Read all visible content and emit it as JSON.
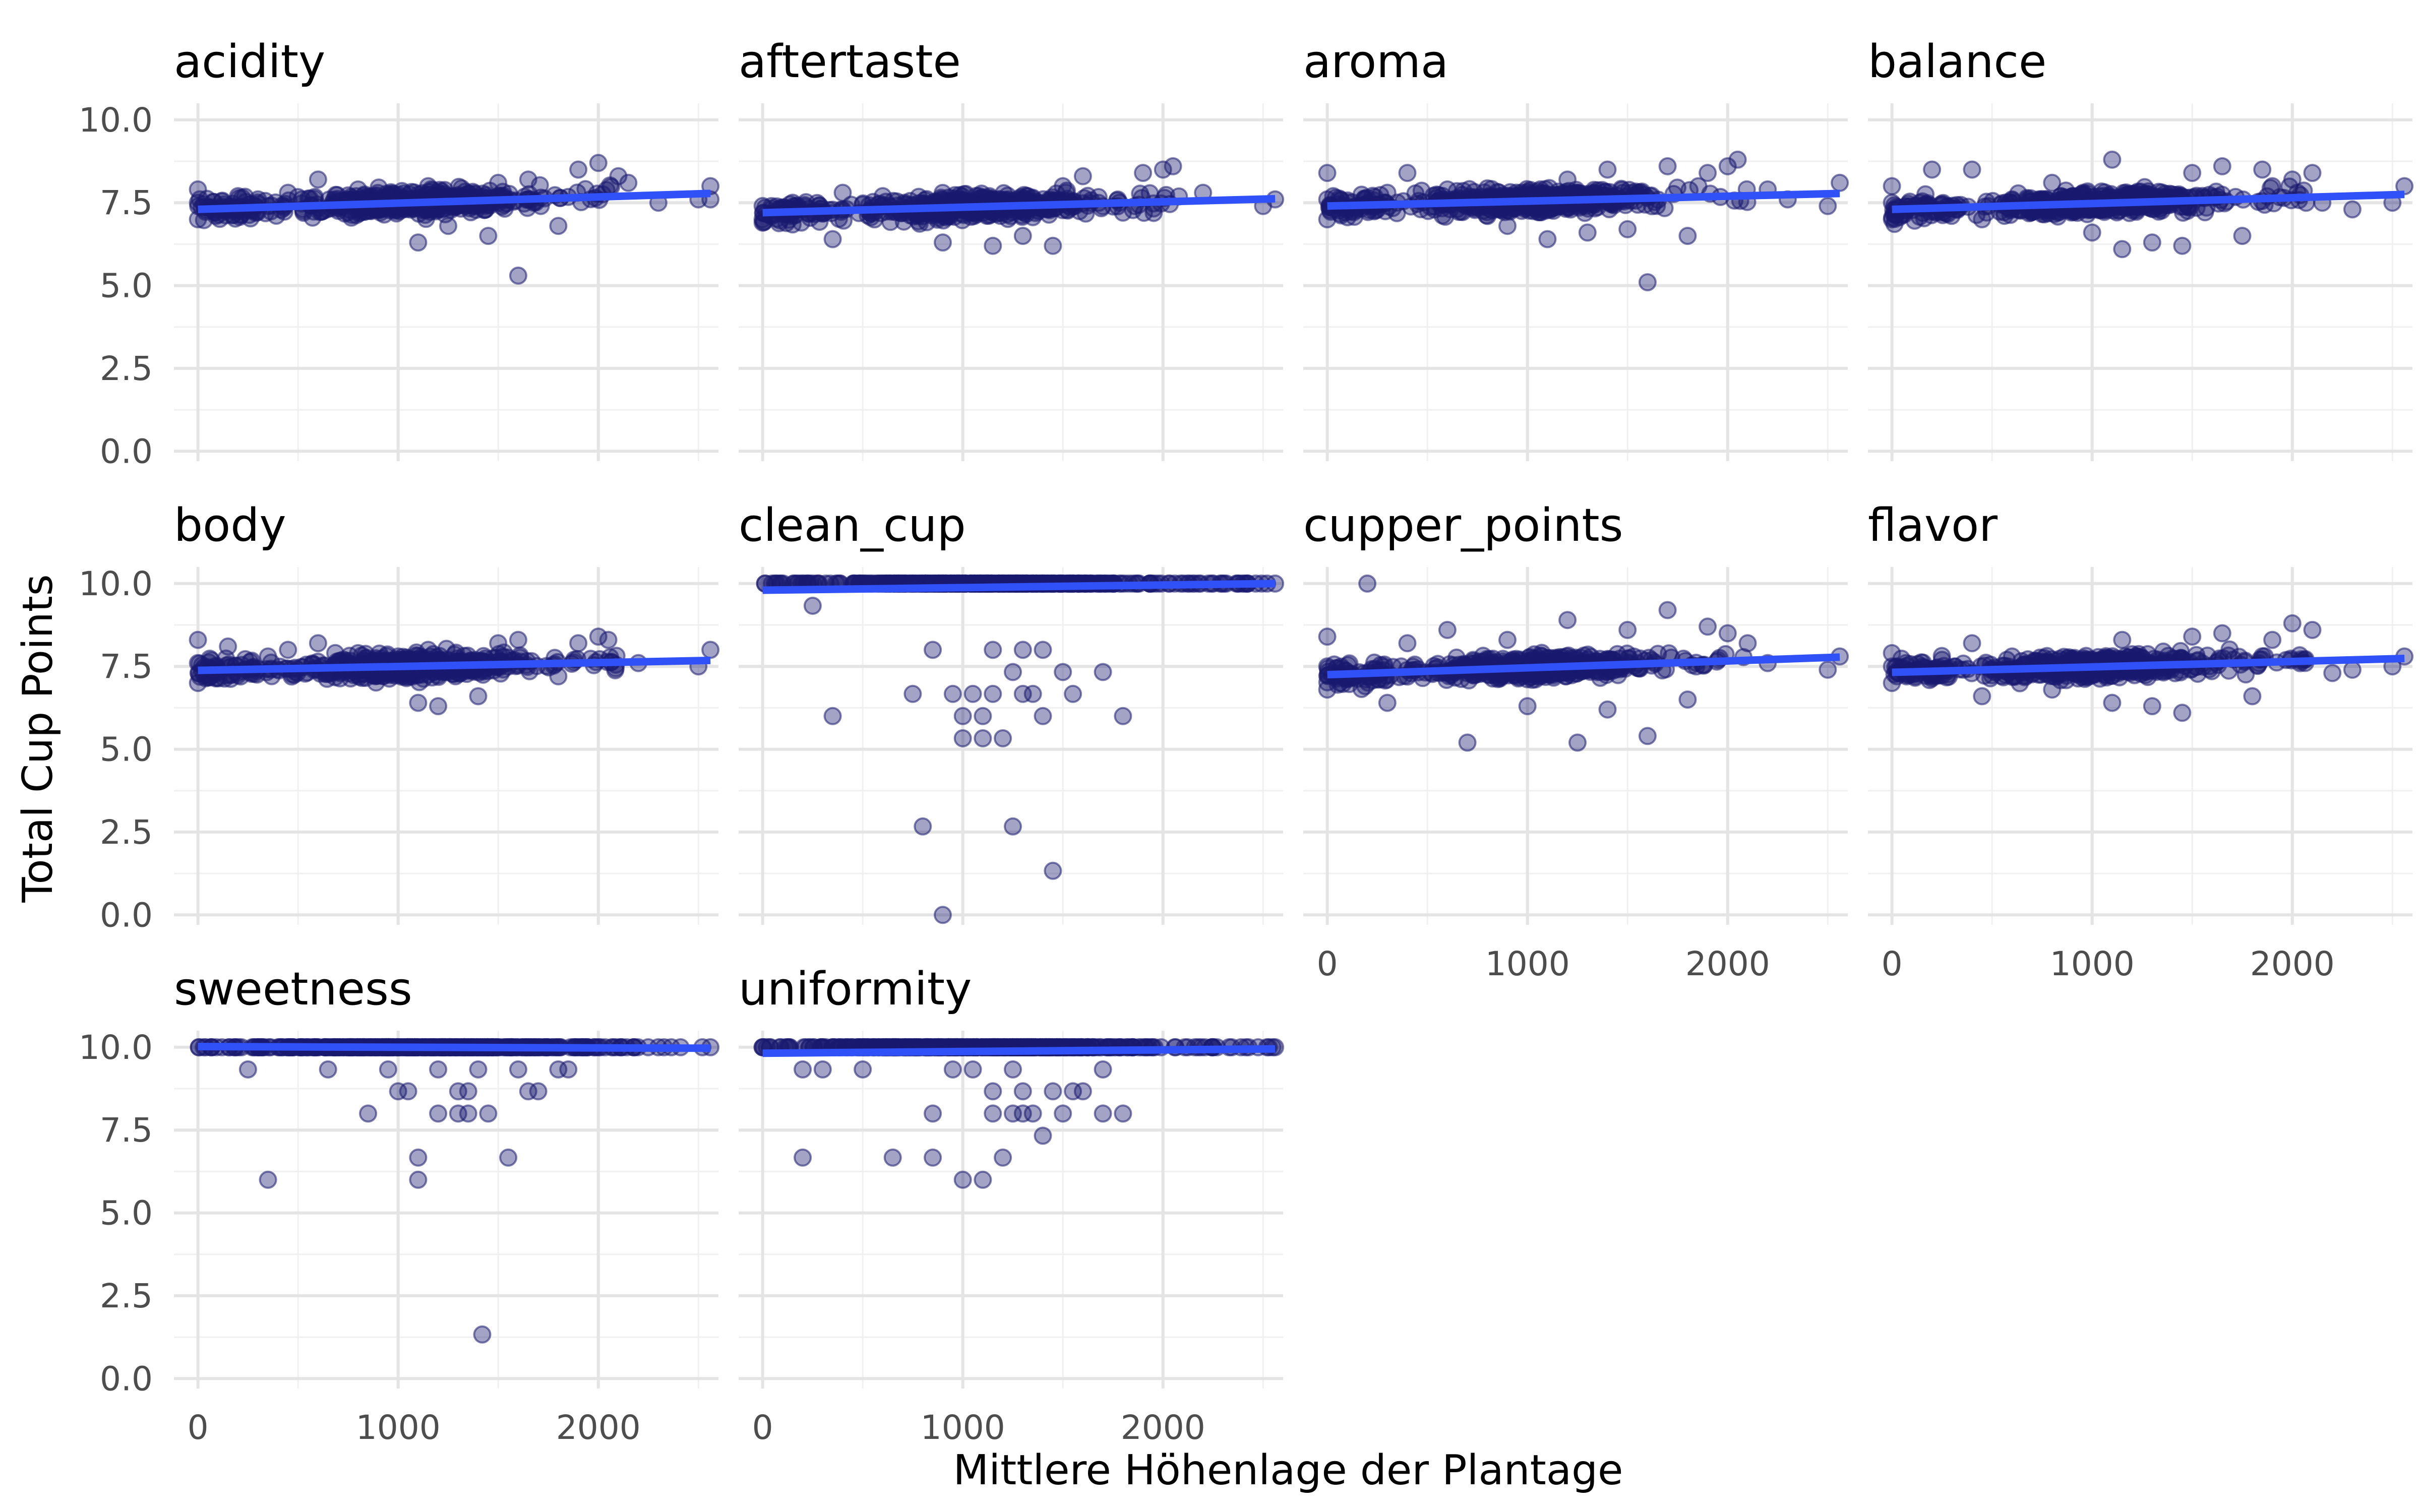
{
  "chart_data": {
    "type": "scatter",
    "layout": "facet-wrap",
    "facet_columns": 4,
    "xlabel": "Mittlere Höhenlage der Plantage",
    "ylabel": "Total Cup Points",
    "xlim": [
      -120,
      2600
    ],
    "ylim": [
      -0.3,
      10.5
    ],
    "x_ticks": [
      0,
      1000,
      2000
    ],
    "y_ticks": [
      0.0,
      2.5,
      5.0,
      7.5,
      10.0
    ],
    "y_tick_labels": [
      "0.0",
      "2.5",
      "5.0",
      "7.5",
      "10.0"
    ],
    "grid": true,
    "point_color": "#191970",
    "point_alpha": 0.4,
    "trend_color": "#3050f8",
    "panels": [
      {
        "name": "acidity",
        "style": "cloud",
        "trend": [
          [
            0,
            7.3
          ],
          [
            2560,
            7.78
          ]
        ],
        "points": [
          [
            0,
            7.5
          ],
          [
            0,
            7.9
          ],
          [
            0,
            7.0
          ],
          [
            200,
            7.7
          ],
          [
            300,
            7.6
          ],
          [
            450,
            7.8
          ],
          [
            600,
            8.2
          ],
          [
            800,
            7.9
          ],
          [
            1100,
            6.3
          ],
          [
            1150,
            8.0
          ],
          [
            1250,
            6.8
          ],
          [
            1450,
            6.5
          ],
          [
            1500,
            8.1
          ],
          [
            1600,
            5.3
          ],
          [
            1650,
            8.2
          ],
          [
            1800,
            6.8
          ],
          [
            1900,
            8.5
          ],
          [
            2000,
            8.7
          ],
          [
            2100,
            8.3
          ],
          [
            2150,
            8.1
          ],
          [
            2300,
            7.5
          ],
          [
            2500,
            7.6
          ],
          [
            2560,
            8.0
          ],
          [
            2560,
            7.6
          ]
        ]
      },
      {
        "name": "aftertaste",
        "style": "cloud",
        "trend": [
          [
            0,
            7.2
          ],
          [
            2560,
            7.62
          ]
        ],
        "points": [
          [
            0,
            7.4
          ],
          [
            0,
            7.0
          ],
          [
            0,
            6.9
          ],
          [
            150,
            7.5
          ],
          [
            350,
            6.4
          ],
          [
            400,
            7.8
          ],
          [
            600,
            7.7
          ],
          [
            900,
            6.3
          ],
          [
            1150,
            6.2
          ],
          [
            1300,
            6.5
          ],
          [
            1450,
            6.2
          ],
          [
            1500,
            8.0
          ],
          [
            1600,
            8.3
          ],
          [
            1800,
            7.2
          ],
          [
            1900,
            8.4
          ],
          [
            2000,
            8.5
          ],
          [
            2050,
            8.6
          ],
          [
            2200,
            7.8
          ],
          [
            2500,
            7.4
          ],
          [
            2560,
            7.6
          ]
        ]
      },
      {
        "name": "aroma",
        "style": "cloud",
        "trend": [
          [
            0,
            7.4
          ],
          [
            2560,
            7.78
          ]
        ],
        "points": [
          [
            0,
            8.4
          ],
          [
            0,
            7.0
          ],
          [
            0,
            7.6
          ],
          [
            250,
            7.3
          ],
          [
            300,
            7.8
          ],
          [
            400,
            8.4
          ],
          [
            600,
            7.9
          ],
          [
            900,
            6.8
          ],
          [
            1100,
            6.4
          ],
          [
            1200,
            8.2
          ],
          [
            1300,
            6.6
          ],
          [
            1400,
            8.5
          ],
          [
            1500,
            6.7
          ],
          [
            1600,
            5.1
          ],
          [
            1700,
            8.6
          ],
          [
            1800,
            6.5
          ],
          [
            1900,
            8.4
          ],
          [
            2000,
            8.6
          ],
          [
            2050,
            8.8
          ],
          [
            2200,
            7.9
          ],
          [
            2300,
            7.6
          ],
          [
            2500,
            7.4
          ],
          [
            2560,
            8.1
          ]
        ]
      },
      {
        "name": "balance",
        "style": "cloud",
        "trend": [
          [
            0,
            7.3
          ],
          [
            2560,
            7.75
          ]
        ],
        "points": [
          [
            0,
            8.0
          ],
          [
            0,
            7.0
          ],
          [
            0,
            7.5
          ],
          [
            200,
            8.5
          ],
          [
            250,
            7.2
          ],
          [
            400,
            8.5
          ],
          [
            450,
            7.0
          ],
          [
            600,
            7.6
          ],
          [
            800,
            8.1
          ],
          [
            1000,
            6.6
          ],
          [
            1100,
            8.8
          ],
          [
            1150,
            6.1
          ],
          [
            1300,
            6.3
          ],
          [
            1450,
            6.2
          ],
          [
            1500,
            8.4
          ],
          [
            1650,
            8.6
          ],
          [
            1750,
            6.5
          ],
          [
            1850,
            8.5
          ],
          [
            1900,
            8.0
          ],
          [
            2000,
            8.2
          ],
          [
            2100,
            8.4
          ],
          [
            2150,
            7.5
          ],
          [
            2300,
            7.3
          ],
          [
            2500,
            7.5
          ],
          [
            2560,
            8.0
          ]
        ]
      },
      {
        "name": "body",
        "style": "cloud",
        "trend": [
          [
            0,
            7.38
          ],
          [
            2560,
            7.68
          ]
        ],
        "points": [
          [
            0,
            8.3
          ],
          [
            0,
            7.0
          ],
          [
            0,
            7.6
          ],
          [
            150,
            8.1
          ],
          [
            350,
            7.8
          ],
          [
            450,
            8.0
          ],
          [
            600,
            8.2
          ],
          [
            800,
            7.9
          ],
          [
            1100,
            6.4
          ],
          [
            1150,
            8.0
          ],
          [
            1200,
            6.3
          ],
          [
            1400,
            6.6
          ],
          [
            1500,
            8.2
          ],
          [
            1600,
            8.3
          ],
          [
            1800,
            7.2
          ],
          [
            1900,
            8.2
          ],
          [
            2000,
            8.4
          ],
          [
            2050,
            8.3
          ],
          [
            2200,
            7.6
          ],
          [
            2500,
            7.5
          ],
          [
            2560,
            8.0
          ]
        ]
      },
      {
        "name": "clean_cup",
        "style": "discrete",
        "trend": [
          [
            0,
            9.8
          ],
          [
            2560,
            10.0
          ]
        ],
        "points": [
          [
            250,
            9.33
          ],
          [
            350,
            6.0
          ],
          [
            750,
            6.67
          ],
          [
            800,
            2.67
          ],
          [
            850,
            8.0
          ],
          [
            900,
            0.0
          ],
          [
            950,
            6.67
          ],
          [
            1000,
            6.0
          ],
          [
            1000,
            5.33
          ],
          [
            1050,
            6.67
          ],
          [
            1100,
            6.0
          ],
          [
            1100,
            5.33
          ],
          [
            1150,
            8.0
          ],
          [
            1150,
            6.67
          ],
          [
            1200,
            5.33
          ],
          [
            1250,
            7.33
          ],
          [
            1250,
            2.67
          ],
          [
            1300,
            8.0
          ],
          [
            1300,
            6.67
          ],
          [
            1350,
            6.67
          ],
          [
            1400,
            8.0
          ],
          [
            1400,
            6.0
          ],
          [
            1450,
            1.33
          ],
          [
            1500,
            7.33
          ],
          [
            1550,
            6.67
          ],
          [
            1700,
            7.33
          ],
          [
            1800,
            6.0
          ]
        ]
      },
      {
        "name": "cupper_points",
        "style": "cloud",
        "trend": [
          [
            0,
            7.25
          ],
          [
            2560,
            7.78
          ]
        ],
        "points": [
          [
            0,
            8.4
          ],
          [
            0,
            6.8
          ],
          [
            0,
            7.5
          ],
          [
            200,
            10.0
          ],
          [
            300,
            6.4
          ],
          [
            400,
            8.2
          ],
          [
            600,
            8.6
          ],
          [
            700,
            5.2
          ],
          [
            900,
            8.3
          ],
          [
            1000,
            6.3
          ],
          [
            1200,
            8.9
          ],
          [
            1250,
            5.2
          ],
          [
            1400,
            6.2
          ],
          [
            1500,
            8.6
          ],
          [
            1600,
            5.4
          ],
          [
            1700,
            9.2
          ],
          [
            1800,
            6.5
          ],
          [
            1900,
            8.7
          ],
          [
            2000,
            8.5
          ],
          [
            2100,
            8.2
          ],
          [
            2200,
            7.6
          ],
          [
            2500,
            7.4
          ],
          [
            2560,
            7.8
          ]
        ]
      },
      {
        "name": "flavor",
        "style": "cloud",
        "trend": [
          [
            0,
            7.32
          ],
          [
            2560,
            7.74
          ]
        ],
        "points": [
          [
            0,
            7.9
          ],
          [
            0,
            7.0
          ],
          [
            0,
            7.5
          ],
          [
            200,
            7.3
          ],
          [
            250,
            7.7
          ],
          [
            400,
            8.2
          ],
          [
            450,
            6.6
          ],
          [
            600,
            7.8
          ],
          [
            800,
            6.8
          ],
          [
            1100,
            6.4
          ],
          [
            1150,
            8.3
          ],
          [
            1300,
            6.3
          ],
          [
            1450,
            6.1
          ],
          [
            1500,
            8.4
          ],
          [
            1650,
            8.5
          ],
          [
            1800,
            6.6
          ],
          [
            1900,
            8.3
          ],
          [
            2000,
            8.8
          ],
          [
            2100,
            8.6
          ],
          [
            2200,
            7.3
          ],
          [
            2300,
            7.4
          ],
          [
            2500,
            7.5
          ],
          [
            2560,
            7.8
          ]
        ]
      },
      {
        "name": "sweetness",
        "style": "discrete",
        "trend": [
          [
            0,
            10.02
          ],
          [
            2560,
            9.97
          ]
        ],
        "points": [
          [
            250,
            9.33
          ],
          [
            350,
            6.0
          ],
          [
            650,
            9.33
          ],
          [
            850,
            8.0
          ],
          [
            950,
            9.33
          ],
          [
            1000,
            8.67
          ],
          [
            1050,
            8.67
          ],
          [
            1100,
            6.67
          ],
          [
            1100,
            6.0
          ],
          [
            1200,
            9.33
          ],
          [
            1200,
            8.0
          ],
          [
            1300,
            8.67
          ],
          [
            1300,
            8.0
          ],
          [
            1350,
            8.67
          ],
          [
            1350,
            8.0
          ],
          [
            1400,
            9.33
          ],
          [
            1420,
            1.33
          ],
          [
            1450,
            8.0
          ],
          [
            1550,
            6.67
          ],
          [
            1600,
            9.33
          ],
          [
            1650,
            8.67
          ],
          [
            1700,
            8.67
          ],
          [
            1800,
            9.33
          ],
          [
            1850,
            9.33
          ]
        ]
      },
      {
        "name": "uniformity",
        "style": "discrete",
        "trend": [
          [
            0,
            9.82
          ],
          [
            2560,
            9.95
          ]
        ],
        "points": [
          [
            200,
            6.67
          ],
          [
            200,
            9.33
          ],
          [
            300,
            9.33
          ],
          [
            500,
            9.33
          ],
          [
            650,
            6.67
          ],
          [
            850,
            8.0
          ],
          [
            850,
            6.67
          ],
          [
            950,
            9.33
          ],
          [
            1000,
            6.0
          ],
          [
            1050,
            9.33
          ],
          [
            1100,
            6.0
          ],
          [
            1150,
            8.0
          ],
          [
            1150,
            8.67
          ],
          [
            1200,
            6.67
          ],
          [
            1250,
            9.33
          ],
          [
            1250,
            8.0
          ],
          [
            1300,
            8.67
          ],
          [
            1300,
            8.0
          ],
          [
            1350,
            8.0
          ],
          [
            1400,
            7.33
          ],
          [
            1450,
            8.67
          ],
          [
            1500,
            8.0
          ],
          [
            1550,
            8.67
          ],
          [
            1600,
            8.67
          ],
          [
            1700,
            8.0
          ],
          [
            1700,
            9.33
          ],
          [
            1800,
            8.0
          ]
        ]
      }
    ]
  }
}
